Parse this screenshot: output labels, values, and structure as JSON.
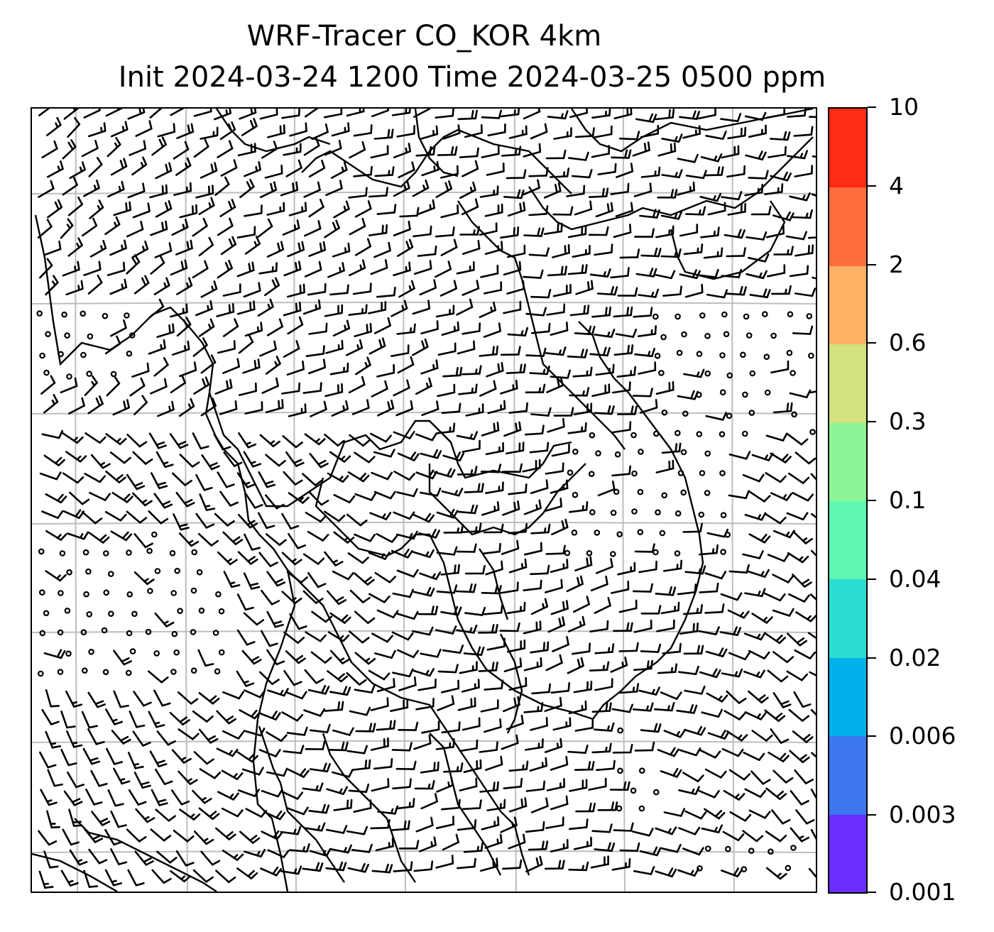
{
  "title": {
    "line1": "WRF-Tracer CO_KOR 4km",
    "line2": "Init 2024-03-24 1200 Time 2024-03-25 0500 ppm"
  },
  "map": {
    "variable": "CO tracer concentration",
    "units": "ppm",
    "overlay": "wind barbs",
    "coastlines": true,
    "gridlines": true
  },
  "colorbar": {
    "levels": [
      "0.001",
      "0.003",
      "0.006",
      "0.02",
      "0.04",
      "0.1",
      "0.3",
      "0.6",
      "2",
      "4",
      "10"
    ],
    "colors": [
      "#6a2cff",
      "#3d78f0",
      "#00b1ea",
      "#2bddd0",
      "#5ff6b3",
      "#8df596",
      "#d1e27e",
      "#fcb164",
      "#fe6d3c",
      "#ff2b14"
    ]
  }
}
